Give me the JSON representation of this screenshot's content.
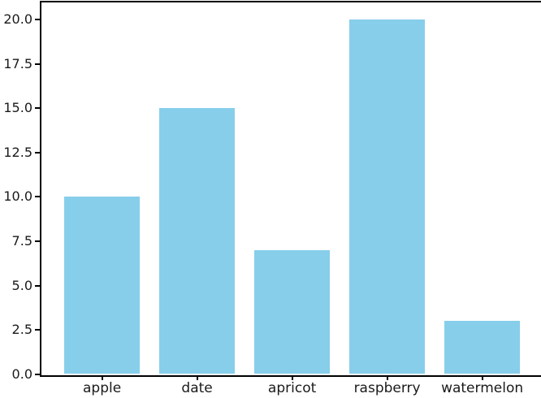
{
  "figure": {
    "background_color": "#ffffff",
    "spine_color": "#000000",
    "tick_label_color": "#1a1a1a"
  },
  "chart_data": {
    "type": "bar",
    "categories": [
      "apple",
      "date",
      "apricot",
      "raspberry",
      "watermelon"
    ],
    "values": [
      10,
      15,
      7,
      20,
      3
    ],
    "series": [
      {
        "name": "values",
        "values": [
          10,
          15,
          7,
          20,
          3
        ]
      }
    ],
    "title": "",
    "xlabel": "",
    "ylabel": "",
    "ylim": [
      0,
      21
    ],
    "ytick_values": [
      0.0,
      2.5,
      5.0,
      7.5,
      10.0,
      12.5,
      15.0,
      17.5,
      20.0
    ],
    "ytick_labels": [
      "0.0",
      "2.5",
      "5.0",
      "7.5",
      "10.0",
      "12.5",
      "15.0",
      "17.5",
      "20.0"
    ],
    "bar_color": "#87CEEB",
    "bar_width_fraction": 0.8,
    "grid": false,
    "legend": null
  }
}
